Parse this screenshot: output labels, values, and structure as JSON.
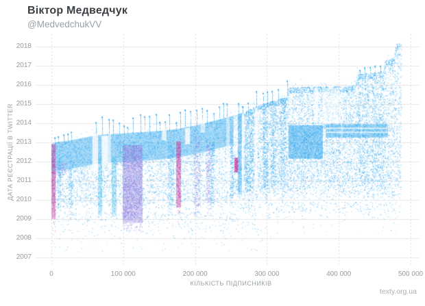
{
  "header": {
    "title": "Віктор Медведчук",
    "handle": "@MedvedchukVV"
  },
  "watermark": "texty.org.ua",
  "chart_data": {
    "type": "scatter",
    "title": "Віктор Медведчук",
    "subtitle": "@MedvedchukVV",
    "xlabel": "КІЛЬКІСТЬ ПІДПИСНИКІВ",
    "ylabel": "ДАТА РЕЄСТРАЦІЇ В TWITTER",
    "xlim": [
      0,
      500000
    ],
    "ylim": [
      2006.7,
      2018.4
    ],
    "x_max_data": 487000,
    "grid": "on",
    "x_ticks": [
      {
        "value": 0,
        "label": "0"
      },
      {
        "value": 100000,
        "label": "100 000"
      },
      {
        "value": 200000,
        "label": "200 000"
      },
      {
        "value": 300000,
        "label": "300 000"
      },
      {
        "value": 400000,
        "label": "400 000"
      },
      {
        "value": 500000,
        "label": "500 000"
      }
    ],
    "y_ticks": [
      2018,
      2017,
      2016,
      2015,
      2014,
      2013,
      2012,
      2011,
      2010,
      2009,
      2008,
      2007
    ],
    "colors": {
      "blue": "#2fa6ee",
      "cyan": "#38b6e8",
      "magenta": "#c2379e",
      "purple": "#8a78dc",
      "grid": "#e6e6e6",
      "grid_dashed": "#d9d9d9",
      "tick_text": "#9b9b9b",
      "axis_text": "#9aa1a6",
      "title_text": "#3a3f44",
      "subtitle_text": "#9aa1a8",
      "watermark_text": "#a9aeb2"
    },
    "envelope": [
      [
        0,
        2012.92
      ],
      [
        8000,
        2013.02
      ],
      [
        25000,
        2013.1
      ],
      [
        45000,
        2013.25
      ],
      [
        62000,
        2013.38
      ],
      [
        90000,
        2013.45
      ],
      [
        120000,
        2013.52
      ],
      [
        150000,
        2013.6
      ],
      [
        175000,
        2013.7
      ],
      [
        200000,
        2013.88
      ],
      [
        213000,
        2014.0
      ],
      [
        228000,
        2014.15
      ],
      [
        242000,
        2014.28
      ],
      [
        252000,
        2014.38
      ],
      [
        262000,
        2014.5
      ],
      [
        272000,
        2014.65
      ],
      [
        282000,
        2014.85
      ],
      [
        292000,
        2015.0
      ],
      [
        302000,
        2015.12
      ],
      [
        312000,
        2015.22
      ],
      [
        322000,
        2015.35
      ],
      [
        328000,
        2015.45
      ],
      [
        330000,
        2015.88
      ],
      [
        350000,
        2015.9
      ],
      [
        370000,
        2015.92
      ],
      [
        390000,
        2015.93
      ],
      [
        410000,
        2015.95
      ],
      [
        423000,
        2016.0
      ],
      [
        425000,
        2016.55
      ],
      [
        443000,
        2016.62
      ],
      [
        458000,
        2016.7
      ],
      [
        462000,
        2016.75
      ],
      [
        464000,
        2017.25
      ],
      [
        472000,
        2017.35
      ],
      [
        477000,
        2017.45
      ],
      [
        479000,
        2018.05
      ],
      [
        481500,
        2018.2
      ],
      [
        487000,
        2018.15
      ]
    ],
    "regions": [
      {
        "name": "main-band",
        "x": [
          0,
          253000
        ],
        "top": {
          "env": 0
        },
        "bottom": {
          "env": -1.5
        },
        "color": "blue",
        "density": 0.3,
        "solid": 0.45,
        "fade": 0.2,
        "tail": 0.3
      },
      {
        "name": "sub-band",
        "x": [
          0,
          253000
        ],
        "top": {
          "env": -1.5
        },
        "bottom": 2009.4,
        "color": "blue",
        "density": 0.2,
        "fade": 0.6,
        "tail": 0.6
      },
      {
        "name": "right-field",
        "x": [
          253000,
          487000
        ],
        "top": {
          "env": 0
        },
        "bottom": 2009.9,
        "color": "blue",
        "density": 0.26,
        "fade": 0.9,
        "tail": 0.8
      },
      {
        "name": "top-rim",
        "x": [
          253000,
          487000
        ],
        "top": {
          "env": 0
        },
        "bottom": {
          "env": -0.3
        },
        "color": "blue",
        "density": 0.5
      },
      {
        "name": "block-2012-2014",
        "x": [
          330000,
          377000
        ],
        "top": 2013.9,
        "bottom": 2012.15,
        "color": "blue",
        "density": 0.3,
        "solid": 0.5
      },
      {
        "name": "rows-block",
        "x": [
          382000,
          468000
        ],
        "top": 2013.95,
        "bottom": 2013.25,
        "color": "blue",
        "density": 0.28,
        "solid": 0.45
      },
      {
        "name": "pre2009-left",
        "x": [
          0,
          310000
        ],
        "top": 2009.4,
        "bottom": 2007.6,
        "color": "blue",
        "density": 0.035,
        "fade": 1.0,
        "tail": 0.4
      },
      {
        "name": "pre2009-right",
        "x": [
          310000,
          480000
        ],
        "top": 2009.9,
        "bottom": 2008.4,
        "color": "blue",
        "density": 0.03,
        "fade": 1.0,
        "tail": 0.3
      },
      {
        "name": "noise-above",
        "x": [
          0,
          487000
        ],
        "top": {
          "env": 0.4
        },
        "bottom": {
          "env": 0
        },
        "color": "blue",
        "density": 0.015,
        "clip": false
      }
    ],
    "stripes": [
      {
        "name": "magenta-0k",
        "x": [
          0,
          5500
        ],
        "top": 2012.9,
        "bottom": 2009.0,
        "color": "magenta",
        "density": 0.55,
        "solid": 0.4,
        "fade": 0.3,
        "tail": 1.3
      },
      {
        "name": "blue-10k",
        "x": [
          8000,
          13000
        ],
        "top": 2012.2,
        "bottom": 2009.3,
        "color": "blue",
        "density": 0.35,
        "fade": 0.4,
        "tail": 0.5
      },
      {
        "name": "violet-patch-15k",
        "x": [
          8000,
          21000
        ],
        "top": 2011.95,
        "bottom": 2011.3,
        "color": "purple",
        "density": 0.3
      },
      {
        "name": "blue-27k",
        "x": [
          24000,
          30000
        ],
        "top": 2012.2,
        "bottom": 2009.3,
        "color": "blue",
        "density": 0.3,
        "fade": 0.4,
        "tail": 0.5
      },
      {
        "name": "cyan-67k",
        "x": [
          65000,
          70000
        ],
        "top": 2012.3,
        "bottom": 2009.2,
        "color": "cyan",
        "density": 0.45,
        "solid": 0.25,
        "fade": 0.3,
        "tail": 0.6
      },
      {
        "name": "cyan-86k",
        "x": [
          83500,
          90000
        ],
        "top": 2012.3,
        "bottom": 2009.2,
        "color": "cyan",
        "density": 0.42,
        "solid": 0.22,
        "fade": 0.3,
        "tail": 0.6
      },
      {
        "name": "purple-band-110k",
        "x": [
          99000,
          126000
        ],
        "top": 2012.85,
        "bottom": 2008.8,
        "color": "purple",
        "density": 0.55,
        "solid": 0.35,
        "fade": 0.4,
        "tail": 0.6
      },
      {
        "name": "blue-166k",
        "x": [
          162000,
          170000
        ],
        "top": 2012.9,
        "bottom": 2009.4,
        "color": "blue",
        "density": 0.35,
        "fade": 0.4,
        "tail": 0.5
      },
      {
        "name": "magenta-177k",
        "x": [
          174000,
          180000
        ],
        "top": 2013.05,
        "bottom": 2009.6,
        "color": "magenta",
        "density": 0.5,
        "solid": 0.4,
        "fade": 0.5,
        "tail": 0.9
      },
      {
        "name": "violet-202k",
        "x": [
          198000,
          207000
        ],
        "top": 2013.3,
        "bottom": 2009.4,
        "color": "purple",
        "density": 0.28,
        "fade": 0.4,
        "tail": 0.5
      },
      {
        "name": "purple-218k",
        "x": [
          215000,
          221500
        ],
        "top": 2012.9,
        "bottom": 2009.4,
        "color": "purple",
        "density": 0.4,
        "fade": 0.4,
        "tail": 0.5
      },
      {
        "name": "blue-224k",
        "x": [
          221500,
          226000
        ],
        "top": 2013.0,
        "bottom": 2009.5,
        "color": "blue",
        "density": 0.45,
        "fade": 0.4,
        "tail": 0.5
      },
      {
        "name": "blue-250k",
        "x": [
          248000,
          253000
        ],
        "top": 2013.1,
        "bottom": 2010.0,
        "color": "blue",
        "density": 0.5,
        "fade": 0.3,
        "tail": 0.5
      },
      {
        "name": "magenta-blob-256k",
        "x": [
          254500,
          259500
        ],
        "top": 2012.2,
        "bottom": 2011.45,
        "color": "magenta",
        "density": 0.7,
        "solid": 0.7
      },
      {
        "name": "blue-262k",
        "x": [
          259500,
          264500
        ],
        "top": 2014.5,
        "bottom": 2010.3,
        "color": "blue",
        "density": 0.45,
        "solid": 0.35,
        "fade": 0.4,
        "tail": 0.5
      },
      {
        "name": "blue-275k",
        "x": [
          269000,
          281000
        ],
        "top": 2014.6,
        "bottom": 2010.2,
        "color": "blue",
        "density": 0.38,
        "fade": 0.5,
        "tail": 0.5
      },
      {
        "name": "blue-297k",
        "x": [
          294000,
          301000
        ],
        "top": 2015.0,
        "bottom": 2010.2,
        "color": "blue",
        "density": 0.4,
        "fade": 0.5,
        "tail": 0.5
      },
      {
        "name": "blue-308k",
        "x": [
          305000,
          312000
        ],
        "top": 2015.1,
        "bottom": 2010.3,
        "color": "blue",
        "density": 0.33,
        "fade": 0.5,
        "tail": 0.4
      },
      {
        "name": "blue-322k",
        "x": [
          318000,
          326000
        ],
        "top": 2015.3,
        "bottom": 2010.3,
        "color": "blue",
        "density": 0.31,
        "fade": 0.5,
        "tail": 0.4
      },
      {
        "name": "blue-433k",
        "x": [
          426000,
          441000
        ],
        "top": 2016.4,
        "bottom": 2010.4,
        "color": "blue",
        "density": 0.16,
        "fade": 0.6,
        "tail": 0.4
      },
      {
        "name": "blue-454k",
        "x": [
          446000,
          462000
        ],
        "top": 2016.5,
        "bottom": 2010.4,
        "color": "blue",
        "density": 0.14,
        "fade": 0.6,
        "tail": 0.4
      }
    ],
    "gaps": [
      {
        "x": [
          70000,
          79000
        ],
        "y": [
          2013.35,
          2011.9
        ],
        "alpha": 0.85
      },
      {
        "x": [
          57000,
          65000
        ],
        "y": [
          2013.4,
          2011.5
        ],
        "alpha": 0.8
      },
      {
        "x": [
          79000,
          83000
        ],
        "y": [
          2013.45,
          2011.5
        ],
        "alpha": 0.6
      },
      {
        "x": [
          186000,
          193000
        ],
        "y": [
          2013.75,
          2012.9
        ],
        "alpha": 0.8
      },
      {
        "x": [
          154000,
          160000
        ],
        "y": [
          2013.75,
          2013.1
        ],
        "alpha": 0.75
      },
      {
        "x": [
          208000,
          214000
        ],
        "y": [
          2014.3,
          2013.5
        ],
        "alpha": 0.6
      },
      {
        "x": [
          243500,
          248000
        ],
        "y": [
          2014.3,
          2011.0
        ],
        "alpha": 0.5
      },
      {
        "x": [
          253000,
          259500
        ],
        "y": [
          2014.4,
          2012.3
        ],
        "alpha": 0.5
      },
      {
        "x": [
          265000,
          268000
        ],
        "y": [
          2014.5,
          2010.5
        ],
        "alpha": 0.75
      },
      {
        "x": [
          283000,
          287000
        ],
        "y": [
          2014.8,
          2010.5
        ],
        "alpha": 0.7
      },
      {
        "x": [
          366000,
          371000
        ],
        "y": [
          2015.85,
          2014.05
        ],
        "alpha": 0.8
      },
      {
        "x": [
          377000,
          402000
        ],
        "y": [
          2015.85,
          2014.0
        ],
        "alpha": 0.5
      },
      {
        "x": [
          382000,
          468000
        ],
        "y": [
          2013.56,
          2013.49
        ],
        "alpha": 0.75
      },
      {
        "x": [
          382000,
          468000
        ],
        "y": [
          2013.77,
          2013.7
        ],
        "alpha": 0.75
      },
      {
        "x": [
          403000,
          405000
        ],
        "y": [
          2015.9,
          2012.0
        ],
        "alpha": 0.4
      },
      {
        "x": [
          430500,
          432500
        ],
        "y": [
          2016.4,
          2012.0
        ],
        "alpha": 0.35
      }
    ],
    "spike_groups": [
      {
        "x": [
          2000,
          30000
        ],
        "count": 5,
        "rise": [
          0.2,
          0.5
        ]
      },
      {
        "x": [
          60000,
          250000
        ],
        "count": 26,
        "rise": [
          0.3,
          0.95
        ]
      },
      {
        "x": [
          255000,
          330000
        ],
        "count": 9,
        "rise": [
          0.3,
          0.8
        ]
      },
      {
        "x": [
          425000,
          460000
        ],
        "count": 5,
        "rise": [
          0.1,
          0.35
        ]
      }
    ]
  }
}
